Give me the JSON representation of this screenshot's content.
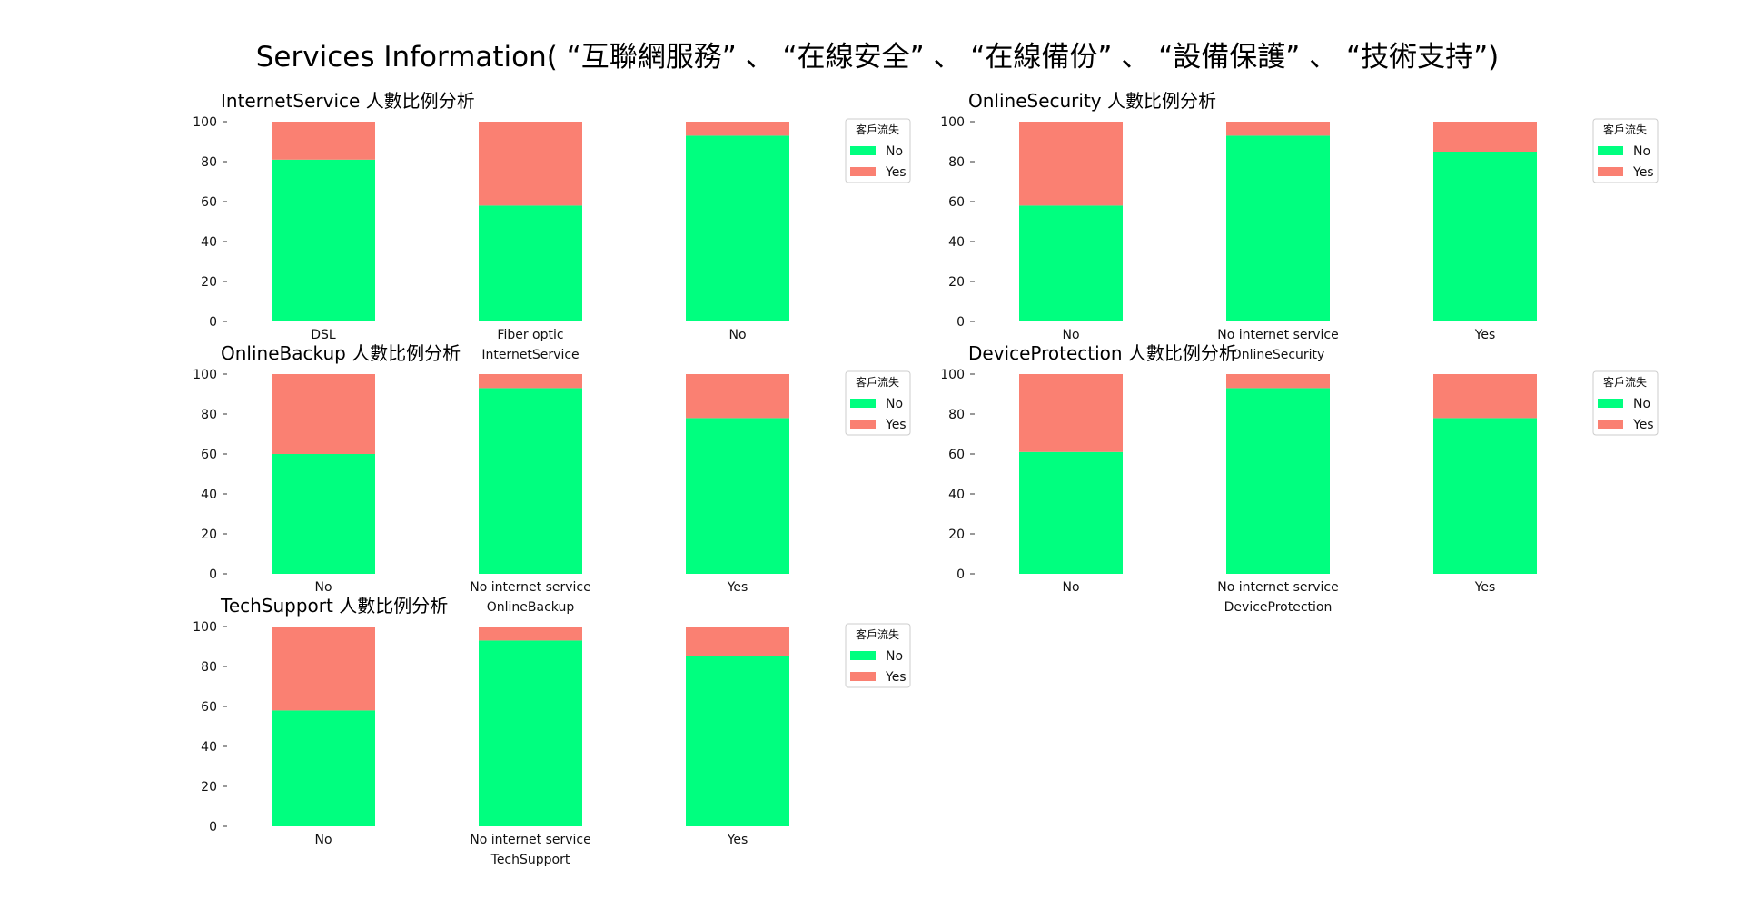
{
  "figure": {
    "title": "Services Information( “互聯網服務” 、 “在線安全” 、 “在線備份” 、 “設備保護” 、 “技術支持”)"
  },
  "colors": {
    "No": "#00ff7f",
    "Yes": "#fa8072"
  },
  "chart_data": [
    {
      "type": "bar",
      "stacked": true,
      "title": "InternetService 人數比例分析",
      "xlabel": "InternetService",
      "ylabel": "",
      "ylim": [
        0,
        100
      ],
      "yticks": [
        0,
        20,
        40,
        60,
        80,
        100
      ],
      "categories": [
        "DSL",
        "Fiber optic",
        "No"
      ],
      "series": [
        {
          "name": "No",
          "values": [
            81,
            58,
            93
          ]
        },
        {
          "name": "Yes",
          "values": [
            19,
            42,
            7
          ]
        }
      ],
      "legend": {
        "title": "客戶流失",
        "entries": [
          "No",
          "Yes"
        ],
        "position": "right"
      },
      "grid": false
    },
    {
      "type": "bar",
      "stacked": true,
      "title": "OnlineSecurity 人數比例分析",
      "xlabel": "OnlineSecurity",
      "ylabel": "",
      "ylim": [
        0,
        100
      ],
      "yticks": [
        0,
        20,
        40,
        60,
        80,
        100
      ],
      "categories": [
        "No",
        "No internet service",
        "Yes"
      ],
      "series": [
        {
          "name": "No",
          "values": [
            58,
            93,
            85
          ]
        },
        {
          "name": "Yes",
          "values": [
            42,
            7,
            15
          ]
        }
      ],
      "legend": {
        "title": "客戶流失",
        "entries": [
          "No",
          "Yes"
        ],
        "position": "right"
      },
      "grid": false
    },
    {
      "type": "bar",
      "stacked": true,
      "title": "OnlineBackup 人數比例分析",
      "xlabel": "OnlineBackup",
      "ylabel": "",
      "ylim": [
        0,
        100
      ],
      "yticks": [
        0,
        20,
        40,
        60,
        80,
        100
      ],
      "categories": [
        "No",
        "No internet service",
        "Yes"
      ],
      "series": [
        {
          "name": "No",
          "values": [
            60,
            93,
            78
          ]
        },
        {
          "name": "Yes",
          "values": [
            40,
            7,
            22
          ]
        }
      ],
      "legend": {
        "title": "客戶流失",
        "entries": [
          "No",
          "Yes"
        ],
        "position": "right"
      },
      "grid": false
    },
    {
      "type": "bar",
      "stacked": true,
      "title": "DeviceProtection 人數比例分析",
      "xlabel": "DeviceProtection",
      "ylabel": "",
      "ylim": [
        0,
        100
      ],
      "yticks": [
        0,
        20,
        40,
        60,
        80,
        100
      ],
      "categories": [
        "No",
        "No internet service",
        "Yes"
      ],
      "series": [
        {
          "name": "No",
          "values": [
            61,
            93,
            78
          ]
        },
        {
          "name": "Yes",
          "values": [
            39,
            7,
            22
          ]
        }
      ],
      "legend": {
        "title": "客戶流失",
        "entries": [
          "No",
          "Yes"
        ],
        "position": "right"
      },
      "grid": false
    },
    {
      "type": "bar",
      "stacked": true,
      "title": "TechSupport 人數比例分析",
      "xlabel": "TechSupport",
      "ylabel": "",
      "ylim": [
        0,
        100
      ],
      "yticks": [
        0,
        20,
        40,
        60,
        80,
        100
      ],
      "categories": [
        "No",
        "No internet service",
        "Yes"
      ],
      "series": [
        {
          "name": "No",
          "values": [
            58,
            93,
            85
          ]
        },
        {
          "name": "Yes",
          "values": [
            42,
            7,
            15
          ]
        }
      ],
      "legend": {
        "title": "客戶流失",
        "entries": [
          "No",
          "Yes"
        ],
        "position": "right"
      },
      "grid": false
    }
  ]
}
